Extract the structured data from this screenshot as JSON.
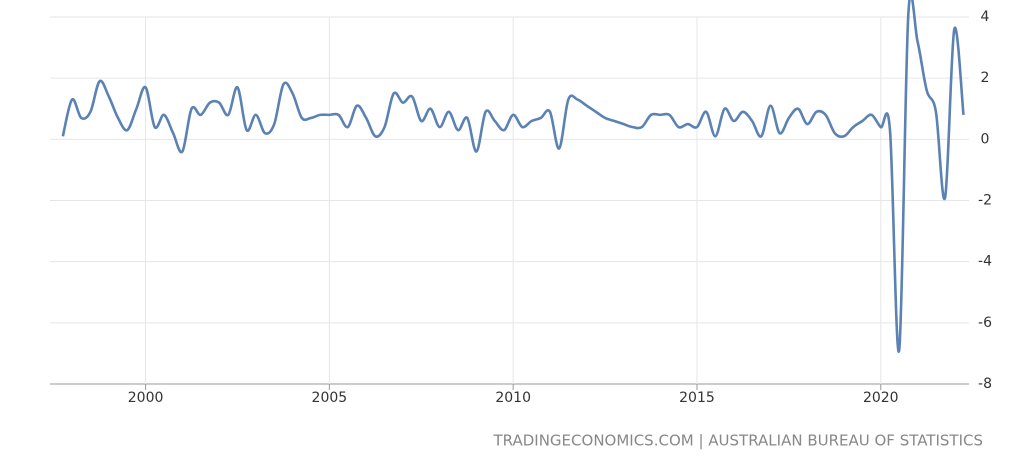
{
  "chart_data": {
    "type": "line",
    "source": "TRADINGECONOMICS.COM | AUSTRALIAN BUREAU OF STATISTICS",
    "x": [
      1997.75,
      1998,
      1998.25,
      1998.5,
      1998.75,
      1999,
      1999.25,
      1999.5,
      1999.75,
      2000,
      2000.25,
      2000.5,
      2000.75,
      2001,
      2001.25,
      2001.5,
      2001.75,
      2002,
      2002.25,
      2002.5,
      2002.75,
      2003,
      2003.25,
      2003.5,
      2003.75,
      2004,
      2004.25,
      2004.5,
      2004.75,
      2005,
      2005.25,
      2005.5,
      2005.75,
      2006,
      2006.25,
      2006.5,
      2006.75,
      2007,
      2007.25,
      2007.5,
      2007.75,
      2008,
      2008.25,
      2008.5,
      2008.75,
      2009,
      2009.25,
      2009.5,
      2009.75,
      2010,
      2010.25,
      2010.5,
      2010.75,
      2011,
      2011.25,
      2011.5,
      2011.75,
      2012,
      2012.25,
      2012.5,
      2012.75,
      2013,
      2013.25,
      2013.5,
      2013.75,
      2014,
      2014.25,
      2014.5,
      2014.75,
      2015,
      2015.25,
      2015.5,
      2015.75,
      2016,
      2016.25,
      2016.5,
      2016.75,
      2017,
      2017.25,
      2017.5,
      2017.75,
      2018,
      2018.25,
      2018.5,
      2018.75,
      2019,
      2019.25,
      2019.5,
      2019.75,
      2020,
      2020.25,
      2020.5,
      2020.75,
      2021,
      2021.25,
      2021.5,
      2021.75,
      2022,
      2022.25
    ],
    "series": [
      {
        "color": "#5b82b3",
        "values": [
          0.1,
          1.3,
          0.7,
          0.9,
          1.9,
          1.4,
          0.7,
          0.3,
          1.0,
          1.7,
          0.4,
          0.8,
          0.2,
          -0.4,
          1.0,
          0.8,
          1.2,
          1.2,
          0.8,
          1.7,
          0.3,
          0.8,
          0.2,
          0.5,
          1.8,
          1.5,
          0.7,
          0.7,
          0.8,
          0.8,
          0.8,
          0.4,
          1.1,
          0.7,
          0.1,
          0.4,
          1.5,
          1.2,
          1.4,
          0.6,
          1.0,
          0.4,
          0.9,
          0.3,
          0.7,
          -0.4,
          0.9,
          0.6,
          0.3,
          0.8,
          0.4,
          0.6,
          0.7,
          0.9,
          -0.3,
          1.3,
          1.3,
          1.1,
          0.9,
          0.7,
          0.6,
          0.5,
          0.4,
          0.4,
          0.8,
          0.8,
          0.8,
          0.4,
          0.5,
          0.4,
          0.9,
          0.1,
          1.0,
          0.6,
          0.9,
          0.6,
          0.1,
          1.1,
          0.2,
          0.7,
          1.0,
          0.5,
          0.9,
          0.8,
          0.2,
          0.1,
          0.4,
          0.6,
          0.8,
          0.4,
          0.3,
          -6.9,
          4.1,
          3.2,
          1.6,
          0.9,
          -1.9,
          3.6,
          0.8
        ]
      }
    ],
    "xlim": [
      1997.4,
      2022.4
    ],
    "xticks": [
      2000,
      2005,
      2010,
      2015,
      2020
    ],
    "ylim": [
      -8,
      4
    ],
    "yticks": [
      4,
      2,
      0,
      -2,
      -4,
      -6,
      -8
    ],
    "grid": true
  }
}
